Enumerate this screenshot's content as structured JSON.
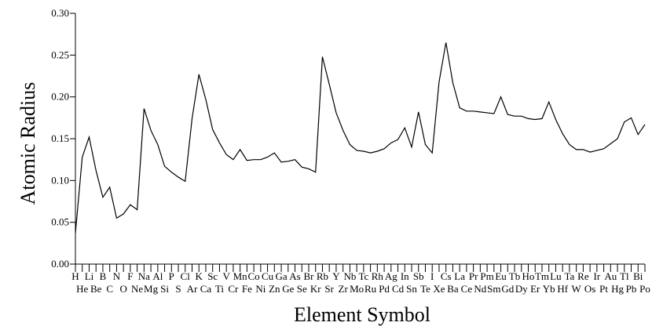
{
  "chart_data": {
    "type": "line",
    "xlabel": "Element Symbol",
    "ylabel": "Atomic Radius",
    "ylim": [
      0,
      0.3
    ],
    "yticks": [
      "0.00",
      "0.05",
      "0.10",
      "0.15",
      "0.20",
      "0.25",
      "0.30"
    ],
    "grid": false,
    "legend": "none",
    "line_color": "#000000",
    "x": [
      "H",
      "He",
      "Li",
      "Be",
      "B",
      "C",
      "N",
      "O",
      "F",
      "Ne",
      "Na",
      "Mg",
      "Al",
      "Si",
      "P",
      "S",
      "Cl",
      "Ar",
      "K",
      "Ca",
      "Sc",
      "Ti",
      "V",
      "Cr",
      "Mn",
      "Fe",
      "Co",
      "Ni",
      "Cu",
      "Zn",
      "Ga",
      "Ge",
      "As",
      "Se",
      "Br",
      "Kr",
      "Rb",
      "Sr",
      "Y",
      "Zr",
      "Nb",
      "Mo",
      "Tc",
      "Ru",
      "Rh",
      "Pd",
      "Ag",
      "Cd",
      "In",
      "Sn",
      "Sb",
      "Te",
      "I",
      "Xe",
      "Cs",
      "Ba",
      "La",
      "Ce",
      "Pr",
      "Nd",
      "Pm",
      "Sm",
      "Eu",
      "Gd",
      "Tb",
      "Dy",
      "Ho",
      "Er",
      "Tm",
      "Yb",
      "Lu",
      "Hf",
      "Ta",
      "W",
      "Re",
      "Os",
      "Ir",
      "Pt",
      "Au",
      "Hg",
      "Tl",
      "Pb",
      "Bi",
      "Po"
    ],
    "values": [
      0.037,
      0.128,
      0.152,
      0.112,
      0.08,
      0.092,
      0.055,
      0.06,
      0.071,
      0.065,
      0.186,
      0.16,
      0.143,
      0.117,
      0.11,
      0.104,
      0.099,
      0.174,
      0.227,
      0.197,
      0.161,
      0.145,
      0.131,
      0.125,
      0.137,
      0.124,
      0.125,
      0.125,
      0.128,
      0.133,
      0.122,
      0.123,
      0.125,
      0.116,
      0.114,
      0.11,
      0.248,
      0.215,
      0.181,
      0.16,
      0.143,
      0.136,
      0.135,
      0.133,
      0.135,
      0.138,
      0.145,
      0.149,
      0.163,
      0.14,
      0.182,
      0.143,
      0.133,
      0.218,
      0.265,
      0.217,
      0.187,
      0.183,
      0.183,
      0.182,
      0.181,
      0.18,
      0.2,
      0.179,
      0.177,
      0.177,
      0.174,
      0.173,
      0.174,
      0.194,
      0.173,
      0.156,
      0.143,
      0.137,
      0.137,
      0.134,
      0.136,
      0.138,
      0.144,
      0.15,
      0.17,
      0.175,
      0.155,
      0.167
    ]
  }
}
